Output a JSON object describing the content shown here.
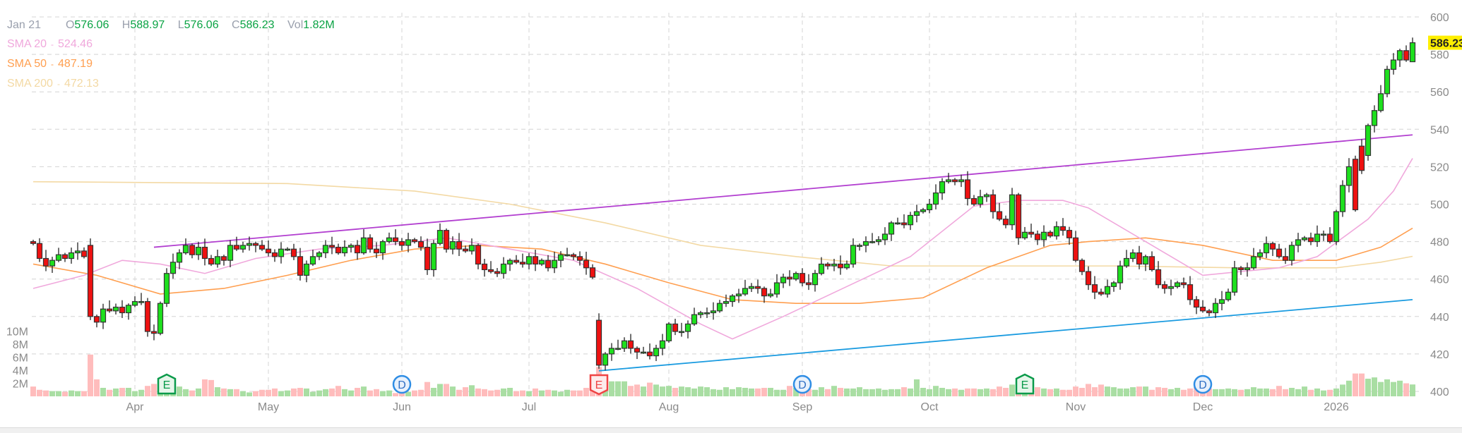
{
  "legend": {
    "date": "Jan 21",
    "open_label": "O",
    "open": "576.06",
    "high_label": "H",
    "high": "588.97",
    "low_label": "L",
    "low": "576.06",
    "close_label": "C",
    "close": "586.23",
    "vol_label": "Vol",
    "vol": "1.82M",
    "sma": [
      {
        "label": "SMA 20",
        "value": "524.46",
        "color": "#f0a8dc"
      },
      {
        "label": "SMA 50",
        "value": "487.19",
        "color": "#ff9f50"
      },
      {
        "label": "SMA 200",
        "value": "472.13",
        "color": "#f3d9a4"
      }
    ]
  },
  "chart_data": {
    "type": "candlestick",
    "ylim": [
      400,
      600
    ],
    "price_ticks": [
      "400",
      "420",
      "440",
      "460",
      "480",
      "500",
      "520",
      "540",
      "560",
      "580",
      "600"
    ],
    "volume_ticks": [
      {
        "label": "2M",
        "v": 2
      },
      {
        "label": "4M",
        "v": 4
      },
      {
        "label": "6M",
        "v": 6
      },
      {
        "label": "8M",
        "v": 8
      },
      {
        "label": "10M",
        "v": 10
      }
    ],
    "last_price": "586.23",
    "months": [
      {
        "label": "Apr",
        "idx": 16
      },
      {
        "label": "May",
        "idx": 37
      },
      {
        "label": "Jun",
        "idx": 58
      },
      {
        "label": "Jul",
        "idx": 78
      },
      {
        "label": "Aug",
        "idx": 100
      },
      {
        "label": "Sep",
        "idx": 121
      },
      {
        "label": "Oct",
        "idx": 141
      },
      {
        "label": "Nov",
        "idx": 164
      },
      {
        "label": "Dec",
        "idx": 184
      },
      {
        "label": "2026",
        "idx": 205
      }
    ],
    "closes": [
      479,
      471,
      467,
      470,
      473,
      471,
      474,
      475,
      472,
      440,
      437,
      444,
      443,
      445,
      442,
      446,
      448,
      448,
      432,
      431,
      447,
      463,
      469,
      474,
      478,
      473,
      477,
      471,
      468,
      472,
      470,
      478,
      476,
      478,
      479,
      478,
      476,
      474,
      472,
      476,
      476,
      472,
      462,
      468,
      472,
      474,
      478,
      477,
      474,
      477,
      478,
      474,
      482,
      476,
      474,
      480,
      482,
      480,
      478,
      481,
      480,
      477,
      465,
      479,
      486,
      476,
      480,
      476,
      475,
      478,
      468,
      465,
      464,
      463,
      468,
      470,
      469,
      468,
      472,
      468,
      470,
      466,
      470,
      473,
      473,
      472,
      470,
      466,
      461,
      414,
      420,
      423,
      423,
      427,
      423,
      421,
      421,
      419,
      423,
      427,
      436,
      432,
      432,
      436,
      441,
      442,
      442,
      443,
      447,
      448,
      451,
      452,
      455,
      456,
      455,
      451,
      452,
      458,
      461,
      460,
      463,
      458,
      457,
      463,
      468,
      467,
      468,
      466,
      468,
      478,
      478,
      480,
      480,
      481,
      484,
      490,
      490,
      489,
      494,
      496,
      497,
      500,
      506,
      512,
      513,
      512,
      513,
      503,
      500,
      504,
      505,
      496,
      492,
      489,
      505,
      482,
      485,
      484,
      481,
      485,
      483,
      488,
      486,
      482,
      470,
      464,
      457,
      453,
      452,
      456,
      458,
      467,
      471,
      474,
      468,
      472,
      465,
      457,
      455,
      456,
      458,
      457,
      449,
      445,
      443,
      442,
      447,
      449,
      453,
      466,
      465,
      466,
      472,
      474,
      479,
      476,
      472,
      470,
      478,
      481,
      482,
      480,
      484,
      484,
      480,
      496,
      510,
      520,
      497,
      518,
      542,
      550,
      559,
      572,
      577,
      582,
      577,
      586.23
    ],
    "open_overrides": {
      "9": 478,
      "89": 438,
      "205": 480,
      "208": 524,
      "209": 531,
      "210": 526,
      "217": 576.06
    },
    "last_high": 588.97,
    "last_low": 576.06,
    "volumes_m": [
      1.5,
      1.0,
      0.9,
      0.8,
      0.8,
      0.7,
      0.9,
      0.8,
      0.8,
      6.4,
      2.6,
      1.3,
      1.0,
      1.2,
      1.3,
      1.3,
      0.8,
      1.0,
      1.6,
      1.9,
      1.6,
      1.8,
      1.9,
      1.5,
      1.1,
      0.9,
      1.2,
      2.6,
      2.5,
      1.4,
      1.2,
      1.1,
      1.1,
      0.8,
      0.6,
      0.8,
      1.0,
      1.0,
      1.2,
      0.8,
      0.9,
      1.2,
      1.3,
      1.2,
      0.7,
      0.9,
      1.1,
      1.2,
      1.6,
      1.1,
      0.9,
      1.3,
      1.5,
      0.9,
      1.1,
      0.8,
      0.9,
      0.5,
      0.6,
      0.7,
      0.9,
      1.0,
      2.2,
      1.3,
      1.9,
      1.9,
      1.5,
      1.0,
      1.4,
      1.7,
      1.2,
      1.1,
      0.9,
      1.0,
      1.2,
      1.3,
      0.8,
      0.9,
      0.8,
      1.2,
      0.9,
      1.0,
      0.9,
      0.7,
      1.0,
      0.9,
      0.9,
      1.3,
      1.5,
      4.5,
      2.8,
      2.3,
      2.3,
      2.3,
      1.6,
      1.8,
      1.5,
      2.1,
      1.8,
      1.5,
      1.6,
      1.3,
      1.5,
      1.4,
      1.2,
      1.5,
      1.4,
      1.1,
      1.0,
      1.4,
      1.1,
      1.4,
      1.3,
      1.2,
      1.2,
      1.3,
      1.3,
      1.0,
      1.0,
      1.6,
      1.3,
      1.0,
      1.1,
      1.0,
      1.4,
      1.1,
      1.6,
      1.3,
      1.2,
      1.2,
      1.4,
      1.1,
      1.1,
      1.2,
      1.0,
      1.1,
      1.1,
      1.4,
      1.2,
      2.6,
      1.3,
      1.1,
      1.6,
      1.3,
      1.1,
      1.2,
      1.0,
      1.2,
      1.2,
      1.1,
      1.2,
      1.1,
      1.5,
      1.3,
      1.8,
      1.9,
      1.4,
      1.3,
      1.4,
      1.2,
      1.1,
      1.2,
      1.0,
      1.0,
      1.5,
      1.3,
      1.9,
      1.4,
      1.8,
      1.5,
      1.4,
      1.2,
      1.2,
      1.4,
      1.5,
      1.5,
      1.0,
      1.4,
      1.3,
      1.1,
      1.3,
      1.0,
      1.2,
      1.4,
      1.1,
      1.2,
      1.1,
      1.1,
      1.2,
      1.1,
      1.0,
      1.1,
      1.4,
      1.2,
      1.2,
      1.1,
      1.6,
      1.1,
      1.3,
      1.1,
      1.5,
      1.0,
      1.2,
      0.9,
      1.0,
      1.2,
      1.8,
      2.4,
      3.5,
      3.5,
      2.7,
      2.9,
      2.2,
      2.6,
      2.2,
      2.4,
      2.0,
      1.82
    ],
    "sma20": [
      [
        0,
        455
      ],
      [
        8,
        462
      ],
      [
        14,
        470
      ],
      [
        20,
        468
      ],
      [
        27,
        463
      ],
      [
        35,
        471
      ],
      [
        45,
        476
      ],
      [
        55,
        478
      ],
      [
        65,
        482
      ],
      [
        75,
        476
      ],
      [
        85,
        470
      ],
      [
        95,
        455
      ],
      [
        105,
        436
      ],
      [
        110,
        428
      ],
      [
        118,
        440
      ],
      [
        128,
        456
      ],
      [
        138,
        472
      ],
      [
        148,
        499
      ],
      [
        155,
        502
      ],
      [
        162,
        502
      ],
      [
        166,
        498
      ],
      [
        175,
        480
      ],
      [
        184,
        462
      ],
      [
        190,
        464
      ],
      [
        196,
        466
      ],
      [
        202,
        472
      ],
      [
        206,
        482
      ],
      [
        210,
        492
      ],
      [
        214,
        507
      ],
      [
        217,
        524.46
      ]
    ],
    "sma50": [
      [
        0,
        468
      ],
      [
        10,
        462
      ],
      [
        20,
        452
      ],
      [
        30,
        455
      ],
      [
        40,
        462
      ],
      [
        50,
        470
      ],
      [
        60,
        476
      ],
      [
        70,
        478
      ],
      [
        80,
        476
      ],
      [
        90,
        468
      ],
      [
        100,
        458
      ],
      [
        110,
        449
      ],
      [
        120,
        447
      ],
      [
        130,
        447
      ],
      [
        140,
        450
      ],
      [
        150,
        466
      ],
      [
        160,
        478
      ],
      [
        166,
        480
      ],
      [
        175,
        482
      ],
      [
        184,
        478
      ],
      [
        195,
        470
      ],
      [
        205,
        470
      ],
      [
        212,
        477
      ],
      [
        217,
        487.19
      ]
    ],
    "sma200": [
      [
        0,
        512
      ],
      [
        40,
        511
      ],
      [
        60,
        507
      ],
      [
        75,
        500
      ],
      [
        90,
        490
      ],
      [
        105,
        478
      ],
      [
        120,
        472
      ],
      [
        135,
        467
      ],
      [
        150,
        467
      ],
      [
        170,
        467
      ],
      [
        190,
        466
      ],
      [
        205,
        466
      ],
      [
        212,
        469
      ],
      [
        217,
        472.13
      ]
    ],
    "trendlines": [
      {
        "name": "resistance",
        "color": "#b23fd0",
        "from": [
          19,
          477
        ],
        "to": [
          217,
          537
        ]
      },
      {
        "name": "support",
        "color": "#1a9be0",
        "from": [
          89,
          411
        ],
        "to": [
          217,
          449
        ]
      }
    ],
    "events": [
      {
        "idx": 21,
        "letter": "E",
        "kind": "earnings",
        "color": "#0a9a4a"
      },
      {
        "idx": 58,
        "letter": "D",
        "kind": "dividend",
        "color": "#2f8de4"
      },
      {
        "idx": 89,
        "letter": "E",
        "kind": "earnings",
        "color": "#ef4444"
      },
      {
        "idx": 121,
        "letter": "D",
        "kind": "dividend",
        "color": "#2f8de4"
      },
      {
        "idx": 156,
        "letter": "E",
        "kind": "earnings",
        "color": "#0a9a4a"
      },
      {
        "idx": 184,
        "letter": "D",
        "kind": "dividend",
        "color": "#2f8de4"
      }
    ],
    "colors": {
      "up": "#1ee01e",
      "down": "#ee1111",
      "vol_up": "#a9dea3",
      "vol_down": "#ffbcbc",
      "price_tag": "#ffef00"
    }
  }
}
